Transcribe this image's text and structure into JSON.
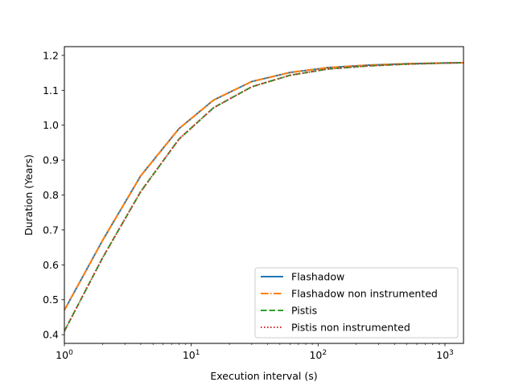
{
  "chart_data": {
    "type": "line",
    "title": "",
    "xlabel": "Execution interval (s)",
    "ylabel": "Duration (Years)",
    "xscale": "log",
    "xlim": [
      1,
      1400
    ],
    "ylim": [
      0.375,
      1.225
    ],
    "xticks": [
      {
        "value": 1,
        "base": "10",
        "exp": "0"
      },
      {
        "value": 10,
        "base": "10",
        "exp": "1"
      },
      {
        "value": 100,
        "base": "10",
        "exp": "2"
      },
      {
        "value": 1000,
        "base": "10",
        "exp": "3"
      }
    ],
    "yticks": [
      "0.4",
      "0.5",
      "0.6",
      "0.7",
      "0.8",
      "0.9",
      "1.0",
      "1.1",
      "1.2"
    ],
    "legend_position": "lower-right",
    "grid": false,
    "series": [
      {
        "name": "Flashadow",
        "color": "#1f77b4",
        "style": "solid",
        "x": [
          1,
          2,
          4,
          8,
          15,
          30,
          60,
          120,
          250,
          500,
          1000,
          1400
        ],
        "y": [
          0.47,
          0.67,
          0.855,
          0.99,
          1.072,
          1.125,
          1.151,
          1.165,
          1.172,
          1.176,
          1.178,
          1.179
        ]
      },
      {
        "name": "Flashadow non instrumented",
        "color": "#ff7f0e",
        "style": "dashdot",
        "x": [
          1,
          2,
          4,
          8,
          15,
          30,
          60,
          120,
          250,
          500,
          1000,
          1400
        ],
        "y": [
          0.47,
          0.67,
          0.855,
          0.99,
          1.072,
          1.125,
          1.151,
          1.165,
          1.172,
          1.176,
          1.178,
          1.179
        ]
      },
      {
        "name": "Pistis",
        "color": "#2ca02c",
        "style": "dashed",
        "x": [
          1,
          2,
          4,
          8,
          15,
          30,
          60,
          120,
          250,
          500,
          1000,
          1400
        ],
        "y": [
          0.41,
          0.62,
          0.81,
          0.96,
          1.05,
          1.11,
          1.143,
          1.161,
          1.17,
          1.175,
          1.178,
          1.179
        ]
      },
      {
        "name": "Pistis non instrumented",
        "color": "#d62728",
        "style": "dotted",
        "x": [
          1,
          2,
          4,
          8,
          15,
          30,
          60,
          120,
          250,
          500,
          1000,
          1400
        ],
        "y": [
          0.41,
          0.62,
          0.81,
          0.96,
          1.05,
          1.11,
          1.143,
          1.161,
          1.17,
          1.175,
          1.178,
          1.179
        ]
      }
    ]
  }
}
